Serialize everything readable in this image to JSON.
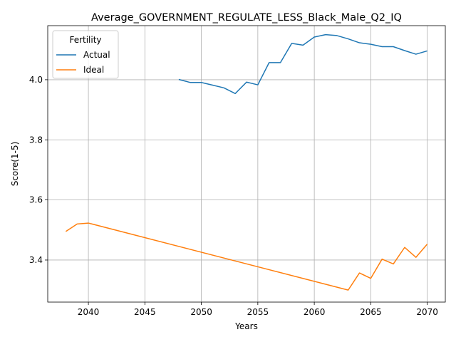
{
  "chart_data": {
    "type": "line",
    "title": "Average_GOVERNMENT_REGULATE_LESS_Black_Male_Q2_IQ",
    "xlabel": "Years",
    "ylabel": "Score(1-5)",
    "xlim": [
      2036.4,
      2071.6
    ],
    "ylim": [
      3.26,
      4.18
    ],
    "xticks": [
      2040,
      2045,
      2050,
      2055,
      2060,
      2065,
      2070
    ],
    "yticks": [
      3.4,
      3.6,
      3.8,
      4.0
    ],
    "ytick_labels": [
      "3.4",
      "3.6",
      "3.8",
      "4.0"
    ],
    "grid": true,
    "legend": {
      "title": "Fertility",
      "position": "upper-left"
    },
    "series": [
      {
        "name": "Actual",
        "color": "#1f77b4",
        "x": [
          2048,
          2049,
          2050,
          2051,
          2052,
          2053,
          2054,
          2055,
          2056,
          2057,
          2058,
          2059,
          2060,
          2061,
          2062,
          2063,
          2064,
          2065,
          2066,
          2067,
          2068,
          2069,
          2070
        ],
        "y": [
          4.001,
          3.991,
          3.991,
          3.982,
          3.973,
          3.954,
          3.992,
          3.983,
          4.057,
          4.057,
          4.121,
          4.115,
          4.142,
          4.15,
          4.147,
          4.136,
          4.123,
          4.118,
          4.11,
          4.11,
          4.097,
          4.085,
          4.096
        ]
      },
      {
        "name": "Ideal",
        "color": "#ff7f0e",
        "x": [
          2038,
          2039,
          2040,
          2063,
          2064,
          2065,
          2066,
          2067,
          2068,
          2069,
          2070
        ],
        "y": [
          3.495,
          3.52,
          3.523,
          3.3,
          3.357,
          3.339,
          3.403,
          3.387,
          3.442,
          3.409,
          3.453
        ]
      }
    ]
  }
}
